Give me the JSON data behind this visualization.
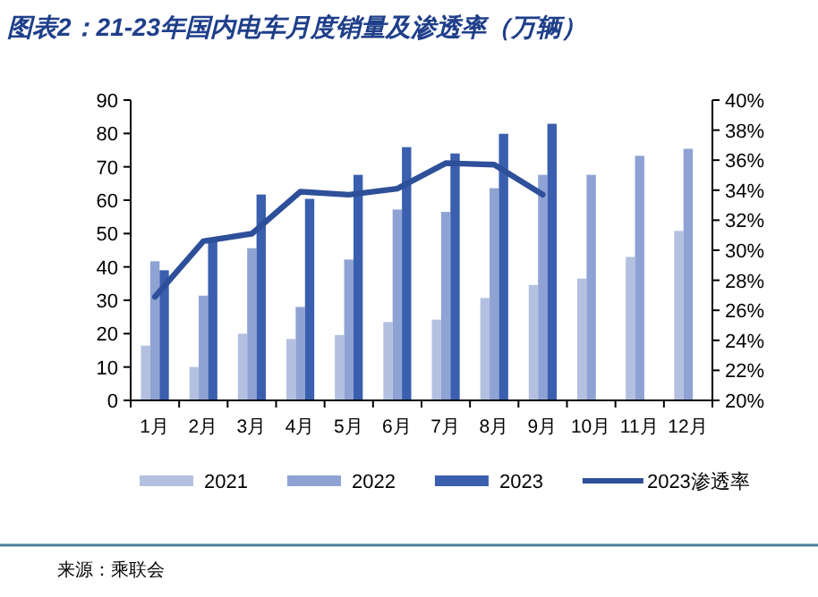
{
  "chart_data": {
    "type": "bar",
    "title": "图表2：21-23年国内电车月度销量及渗透率（万辆）",
    "categories": [
      "1月",
      "2月",
      "3月",
      "4月",
      "5月",
      "6月",
      "7月",
      "8月",
      "9月",
      "10月",
      "11月",
      "12月"
    ],
    "series": [
      {
        "name": "2021",
        "color": "#b4c0e0",
        "values": [
          16.4,
          10.0,
          20.0,
          18.4,
          19.6,
          23.5,
          24.2,
          30.7,
          34.6,
          36.5,
          43.0,
          50.8
        ]
      },
      {
        "name": "2022",
        "color": "#8fa2d4",
        "values": [
          41.7,
          31.4,
          45.6,
          28.0,
          42.2,
          57.2,
          56.5,
          63.6,
          67.6,
          67.6,
          73.3,
          75.4
        ]
      },
      {
        "name": "2023",
        "color": "#3a5fae",
        "values": [
          39.0,
          48.0,
          61.7,
          60.4,
          67.6,
          75.9,
          74.0,
          79.9,
          82.9,
          null,
          null,
          null
        ]
      },
      {
        "name": "2023渗透率",
        "type": "line",
        "axis": "y2",
        "color": "#2e4f99",
        "values": [
          26.9,
          30.6,
          31.1,
          33.9,
          33.7,
          34.1,
          35.8,
          35.7,
          33.7,
          null,
          null,
          null
        ]
      }
    ],
    "ylim": [
      0,
      90
    ],
    "yticks": [
      0,
      10,
      20,
      30,
      40,
      50,
      60,
      70,
      80,
      90
    ],
    "y2lim": [
      20,
      40
    ],
    "y2ticks": [
      {
        "value": 20,
        "label": "20%"
      },
      {
        "value": 22,
        "label": "22%"
      },
      {
        "value": 24,
        "label": "24%"
      },
      {
        "value": 26,
        "label": "26%"
      },
      {
        "value": 28,
        "label": "28%"
      },
      {
        "value": 30,
        "label": "30%"
      },
      {
        "value": 32,
        "label": "32%"
      },
      {
        "value": 34,
        "label": "34%"
      },
      {
        "value": 36,
        "label": "36%"
      },
      {
        "value": 38,
        "label": "38%"
      },
      {
        "value": 40,
        "label": "40%"
      }
    ],
    "legend": "bottom",
    "grid": false,
    "annotations": [
      "来源：乘联会"
    ]
  }
}
